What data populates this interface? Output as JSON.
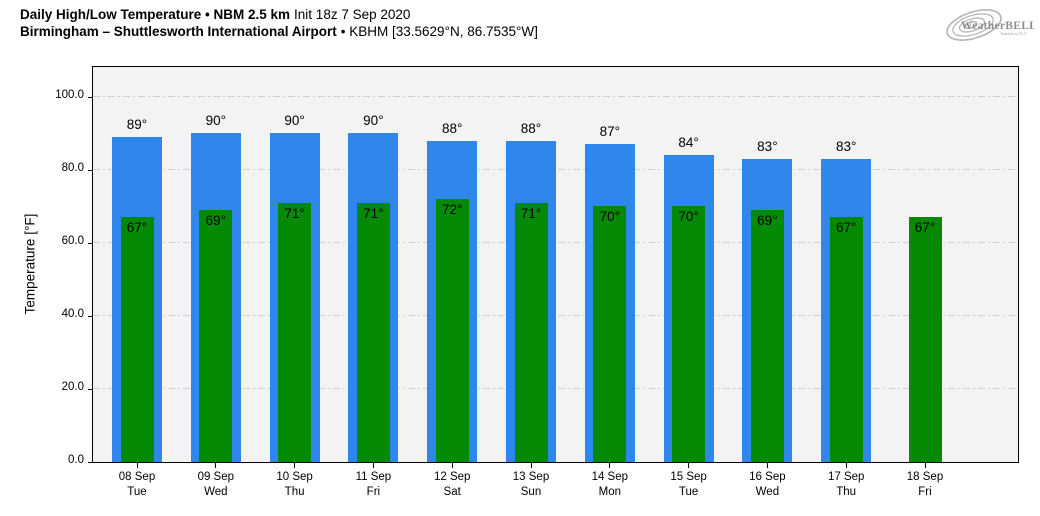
{
  "header": {
    "line1_bold": "Daily High/Low Temperature • NBM 2.5 km",
    "line1_regular": "Init 18z 7 Sep 2020",
    "line2_bold": "Birmingham – Shuttlesworth International Airport",
    "line2_regular": "• KBHM [33.5629°N, 86.7535°W]"
  },
  "logo": {
    "text_main": "WeatherBELL",
    "text_sub": "Analytics LLC"
  },
  "colors": {
    "high_bar": "#2f87ec",
    "low_bar": "#048a04",
    "plot_bg": "#f3f3f3",
    "grid": "#d0d0d0",
    "axis": "#000000",
    "figure_bg": "#ffffff",
    "logo_gray": "#8f8f8f"
  },
  "chart_data": {
    "type": "bar",
    "title": "Daily High/Low Temperature • NBM 2.5 km Init 18z 7 Sep 2020",
    "subtitle": "Birmingham – Shuttlesworth International Airport • KBHM [33.5629°N, 86.7535°W]",
    "ylabel": "Temperature [°F]",
    "ylim": [
      0,
      108.2
    ],
    "yticks": [
      0,
      20,
      40,
      60,
      80,
      100
    ],
    "ytick_labels": [
      "0.0",
      "20.0",
      "40.0",
      "60.0",
      "80.0",
      "100.0"
    ],
    "grid": "horizontal dash-dot",
    "legend": false,
    "bar_label_suffix": "°",
    "categories": [
      {
        "date": "08 Sep",
        "day": "Tue"
      },
      {
        "date": "09 Sep",
        "day": "Wed"
      },
      {
        "date": "10 Sep",
        "day": "Thu"
      },
      {
        "date": "11 Sep",
        "day": "Fri"
      },
      {
        "date": "12 Sep",
        "day": "Sat"
      },
      {
        "date": "13 Sep",
        "day": "Sun"
      },
      {
        "date": "14 Sep",
        "day": "Mon"
      },
      {
        "date": "15 Sep",
        "day": "Tue"
      },
      {
        "date": "16 Sep",
        "day": "Wed"
      },
      {
        "date": "17 Sep",
        "day": "Thu"
      },
      {
        "date": "18 Sep",
        "day": "Fri"
      }
    ],
    "series": [
      {
        "name": "High",
        "color": "#2f87ec",
        "values": [
          89,
          90,
          90,
          90,
          88,
          88,
          87,
          84,
          83,
          83,
          null
        ]
      },
      {
        "name": "Low",
        "color": "#048a04",
        "values": [
          67,
          69,
          71,
          71,
          72,
          71,
          70,
          70,
          69,
          67,
          67
        ]
      }
    ]
  }
}
